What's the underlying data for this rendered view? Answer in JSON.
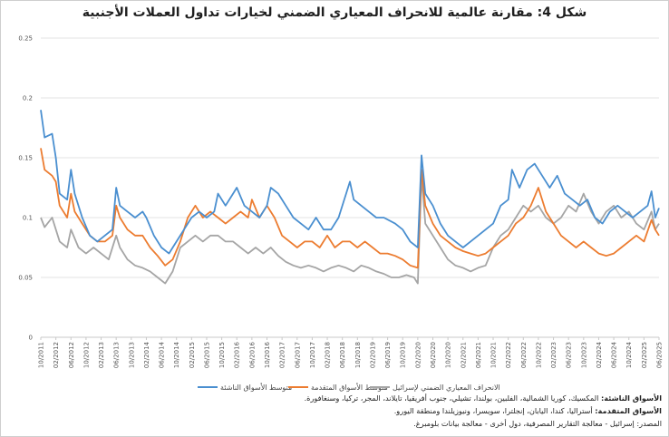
{
  "title": {
    "prefix": "شكل 4:",
    "text": "مقارنة عالمية للانحراف المعياري الضمني لخيارات تداول العملات الأجنبية"
  },
  "notes": [
    {
      "label": "الأسواق الناشئة:",
      "text": "المكسيك، كوريا الشمالية، الفلبين، بولندا، تشيلي، جنوب أفريقيا، تايلاند، المجر، تركيا، وسنغافورة."
    },
    {
      "label": "الأسواق المتقدمة:",
      "text": "أستراليا، كندا، اليابان، إنجلترا، سويسرا، ونيوزيلندا ومنطقة اليورو."
    },
    {
      "label": "",
      "text": "المصدر: إسرائيل - معالجة التقارير المصرفية، دول أخرى - معالجة بيانات بلومبرغ."
    }
  ],
  "chart_data": {
    "type": "line",
    "title": "",
    "xlabel": "",
    "ylabel": "",
    "ylim": [
      0,
      0.25
    ],
    "y_ticks": [
      "0",
      "0.05",
      "0.1",
      "0.15",
      "0.2",
      "0.25"
    ],
    "grid": true,
    "legend_position": "bottom",
    "x_range": [
      "2011-10",
      "2025-06"
    ],
    "x_tick_labels": [
      "10/2011",
      "02/2012",
      "06/2012",
      "10/2012",
      "02/2013",
      "06/2013",
      "10/2013",
      "02/2014",
      "06/2014",
      "10/2014",
      "02/2015",
      "06/2015",
      "10/2015",
      "02/2016",
      "06/2016",
      "10/2016",
      "02/2017",
      "06/2017",
      "10/2017",
      "02/2018",
      "06/2018",
      "10/2018",
      "02/2019",
      "06/2019",
      "10/2019",
      "02/2020",
      "06/2020",
      "10/2020",
      "02/2021",
      "06/2021",
      "10/2021",
      "02/2022",
      "06/2022",
      "10/2022",
      "02/2023",
      "06/2023",
      "10/2023",
      "02/2024",
      "06/2024",
      "10/2024",
      "02/2025",
      "06/2025"
    ],
    "series": [
      {
        "name": "متوسط الأسواق الناشئة",
        "color": "#4a8fd0",
        "points": [
          [
            "2011-10",
            0.19
          ],
          [
            "2011-11",
            0.167
          ],
          [
            "2012-01",
            0.17
          ],
          [
            "2012-02",
            0.15
          ],
          [
            "2012-03",
            0.12
          ],
          [
            "2012-05",
            0.115
          ],
          [
            "2012-06",
            0.14
          ],
          [
            "2012-07",
            0.12
          ],
          [
            "2012-09",
            0.1
          ],
          [
            "2012-11",
            0.085
          ],
          [
            "2013-01",
            0.08
          ],
          [
            "2013-03",
            0.085
          ],
          [
            "2013-05",
            0.09
          ],
          [
            "2013-06",
            0.125
          ],
          [
            "2013-07",
            0.11
          ],
          [
            "2013-09",
            0.105
          ],
          [
            "2013-11",
            0.1
          ],
          [
            "2014-01",
            0.105
          ],
          [
            "2014-02",
            0.1
          ],
          [
            "2014-04",
            0.085
          ],
          [
            "2014-06",
            0.075
          ],
          [
            "2014-08",
            0.07
          ],
          [
            "2014-10",
            0.08
          ],
          [
            "2014-12",
            0.09
          ],
          [
            "2015-02",
            0.1
          ],
          [
            "2015-04",
            0.105
          ],
          [
            "2015-06",
            0.1
          ],
          [
            "2015-08",
            0.105
          ],
          [
            "2015-09",
            0.12
          ],
          [
            "2015-11",
            0.11
          ],
          [
            "2016-01",
            0.12
          ],
          [
            "2016-02",
            0.125
          ],
          [
            "2016-04",
            0.11
          ],
          [
            "2016-06",
            0.105
          ],
          [
            "2016-08",
            0.1
          ],
          [
            "2016-10",
            0.11
          ],
          [
            "2016-11",
            0.125
          ],
          [
            "2017-01",
            0.12
          ],
          [
            "2017-03",
            0.11
          ],
          [
            "2017-05",
            0.1
          ],
          [
            "2017-07",
            0.095
          ],
          [
            "2017-09",
            0.09
          ],
          [
            "2017-11",
            0.1
          ],
          [
            "2018-01",
            0.09
          ],
          [
            "2018-03",
            0.09
          ],
          [
            "2018-05",
            0.1
          ],
          [
            "2018-08",
            0.13
          ],
          [
            "2018-09",
            0.115
          ],
          [
            "2018-11",
            0.11
          ],
          [
            "2019-01",
            0.105
          ],
          [
            "2019-03",
            0.1
          ],
          [
            "2019-05",
            0.1
          ],
          [
            "2019-08",
            0.095
          ],
          [
            "2019-10",
            0.09
          ],
          [
            "2019-12",
            0.08
          ],
          [
            "2020-02",
            0.075
          ],
          [
            "2020-03",
            0.152
          ],
          [
            "2020-04",
            0.12
          ],
          [
            "2020-06",
            0.11
          ],
          [
            "2020-08",
            0.095
          ],
          [
            "2020-10",
            0.085
          ],
          [
            "2020-12",
            0.08
          ],
          [
            "2021-02",
            0.075
          ],
          [
            "2021-04",
            0.08
          ],
          [
            "2021-06",
            0.085
          ],
          [
            "2021-08",
            0.09
          ],
          [
            "2021-10",
            0.095
          ],
          [
            "2021-12",
            0.11
          ],
          [
            "2022-02",
            0.115
          ],
          [
            "2022-03",
            0.14
          ],
          [
            "2022-05",
            0.125
          ],
          [
            "2022-07",
            0.14
          ],
          [
            "2022-09",
            0.145
          ],
          [
            "2022-11",
            0.135
          ],
          [
            "2023-01",
            0.125
          ],
          [
            "2023-03",
            0.135
          ],
          [
            "2023-05",
            0.12
          ],
          [
            "2023-07",
            0.115
          ],
          [
            "2023-09",
            0.11
          ],
          [
            "2023-11",
            0.115
          ],
          [
            "2024-01",
            0.1
          ],
          [
            "2024-03",
            0.095
          ],
          [
            "2024-05",
            0.105
          ],
          [
            "2024-07",
            0.11
          ],
          [
            "2024-09",
            0.105
          ],
          [
            "2024-11",
            0.1
          ],
          [
            "2025-01",
            0.105
          ],
          [
            "2025-03",
            0.11
          ],
          [
            "2025-04",
            0.122
          ],
          [
            "2025-05",
            0.1
          ],
          [
            "2025-06",
            0.108
          ]
        ]
      },
      {
        "name": "متوسط الأسواق المتقدمة",
        "color": "#ec7c30",
        "points": [
          [
            "2011-10",
            0.158
          ],
          [
            "2011-11",
            0.14
          ],
          [
            "2012-01",
            0.135
          ],
          [
            "2012-02",
            0.13
          ],
          [
            "2012-03",
            0.11
          ],
          [
            "2012-05",
            0.1
          ],
          [
            "2012-06",
            0.12
          ],
          [
            "2012-07",
            0.105
          ],
          [
            "2012-09",
            0.095
          ],
          [
            "2012-11",
            0.085
          ],
          [
            "2013-01",
            0.08
          ],
          [
            "2013-03",
            0.08
          ],
          [
            "2013-05",
            0.085
          ],
          [
            "2013-06",
            0.11
          ],
          [
            "2013-07",
            0.1
          ],
          [
            "2013-09",
            0.09
          ],
          [
            "2013-11",
            0.085
          ],
          [
            "2014-01",
            0.085
          ],
          [
            "2014-03",
            0.075
          ],
          [
            "2014-05",
            0.068
          ],
          [
            "2014-07",
            0.06
          ],
          [
            "2014-09",
            0.065
          ],
          [
            "2014-11",
            0.08
          ],
          [
            "2015-01",
            0.1
          ],
          [
            "2015-03",
            0.11
          ],
          [
            "2015-05",
            0.1
          ],
          [
            "2015-07",
            0.105
          ],
          [
            "2015-09",
            0.1
          ],
          [
            "2015-11",
            0.095
          ],
          [
            "2016-01",
            0.1
          ],
          [
            "2016-03",
            0.105
          ],
          [
            "2016-05",
            0.1
          ],
          [
            "2016-06",
            0.115
          ],
          [
            "2016-08",
            0.1
          ],
          [
            "2016-10",
            0.11
          ],
          [
            "2016-12",
            0.1
          ],
          [
            "2017-02",
            0.085
          ],
          [
            "2017-04",
            0.08
          ],
          [
            "2017-06",
            0.075
          ],
          [
            "2017-08",
            0.08
          ],
          [
            "2017-10",
            0.08
          ],
          [
            "2017-12",
            0.075
          ],
          [
            "2018-02",
            0.085
          ],
          [
            "2018-04",
            0.075
          ],
          [
            "2018-06",
            0.08
          ],
          [
            "2018-08",
            0.08
          ],
          [
            "2018-10",
            0.075
          ],
          [
            "2018-12",
            0.08
          ],
          [
            "2019-02",
            0.075
          ],
          [
            "2019-04",
            0.07
          ],
          [
            "2019-06",
            0.07
          ],
          [
            "2019-08",
            0.068
          ],
          [
            "2019-10",
            0.065
          ],
          [
            "2019-12",
            0.06
          ],
          [
            "2020-02",
            0.058
          ],
          [
            "2020-03",
            0.14
          ],
          [
            "2020-04",
            0.11
          ],
          [
            "2020-06",
            0.095
          ],
          [
            "2020-08",
            0.085
          ],
          [
            "2020-10",
            0.08
          ],
          [
            "2020-12",
            0.075
          ],
          [
            "2021-02",
            0.072
          ],
          [
            "2021-04",
            0.07
          ],
          [
            "2021-06",
            0.068
          ],
          [
            "2021-08",
            0.07
          ],
          [
            "2021-10",
            0.075
          ],
          [
            "2021-12",
            0.08
          ],
          [
            "2022-02",
            0.085
          ],
          [
            "2022-04",
            0.095
          ],
          [
            "2022-06",
            0.1
          ],
          [
            "2022-08",
            0.11
          ],
          [
            "2022-10",
            0.125
          ],
          [
            "2022-12",
            0.105
          ],
          [
            "2023-02",
            0.095
          ],
          [
            "2023-04",
            0.085
          ],
          [
            "2023-06",
            0.08
          ],
          [
            "2023-08",
            0.075
          ],
          [
            "2023-10",
            0.08
          ],
          [
            "2023-12",
            0.075
          ],
          [
            "2024-02",
            0.07
          ],
          [
            "2024-04",
            0.068
          ],
          [
            "2024-06",
            0.07
          ],
          [
            "2024-08",
            0.075
          ],
          [
            "2024-10",
            0.08
          ],
          [
            "2024-12",
            0.085
          ],
          [
            "2025-02",
            0.08
          ],
          [
            "2025-04",
            0.098
          ],
          [
            "2025-05",
            0.09
          ],
          [
            "2025-06",
            0.085
          ]
        ]
      },
      {
        "name": "الانحراف المعياري الضمني لإسرائيل",
        "color": "#a5a5a5",
        "points": [
          [
            "2011-10",
            0.1
          ],
          [
            "2011-11",
            0.092
          ],
          [
            "2012-01",
            0.1
          ],
          [
            "2012-03",
            0.08
          ],
          [
            "2012-05",
            0.075
          ],
          [
            "2012-06",
            0.09
          ],
          [
            "2012-08",
            0.075
          ],
          [
            "2012-10",
            0.07
          ],
          [
            "2012-12",
            0.075
          ],
          [
            "2013-02",
            0.07
          ],
          [
            "2013-04",
            0.065
          ],
          [
            "2013-06",
            0.085
          ],
          [
            "2013-07",
            0.075
          ],
          [
            "2013-09",
            0.065
          ],
          [
            "2013-11",
            0.06
          ],
          [
            "2014-01",
            0.058
          ],
          [
            "2014-03",
            0.055
          ],
          [
            "2014-05",
            0.05
          ],
          [
            "2014-07",
            0.045
          ],
          [
            "2014-09",
            0.055
          ],
          [
            "2014-11",
            0.075
          ],
          [
            "2015-01",
            0.08
          ],
          [
            "2015-03",
            0.085
          ],
          [
            "2015-05",
            0.08
          ],
          [
            "2015-07",
            0.085
          ],
          [
            "2015-09",
            0.085
          ],
          [
            "2015-11",
            0.08
          ],
          [
            "2016-01",
            0.08
          ],
          [
            "2016-03",
            0.075
          ],
          [
            "2016-05",
            0.07
          ],
          [
            "2016-07",
            0.075
          ],
          [
            "2016-09",
            0.07
          ],
          [
            "2016-11",
            0.075
          ],
          [
            "2017-01",
            0.068
          ],
          [
            "2017-03",
            0.063
          ],
          [
            "2017-05",
            0.06
          ],
          [
            "2017-07",
            0.058
          ],
          [
            "2017-09",
            0.06
          ],
          [
            "2017-11",
            0.058
          ],
          [
            "2018-01",
            0.055
          ],
          [
            "2018-03",
            0.058
          ],
          [
            "2018-05",
            0.06
          ],
          [
            "2018-07",
            0.058
          ],
          [
            "2018-09",
            0.055
          ],
          [
            "2018-11",
            0.06
          ],
          [
            "2019-01",
            0.058
          ],
          [
            "2019-03",
            0.055
          ],
          [
            "2019-05",
            0.053
          ],
          [
            "2019-07",
            0.05
          ],
          [
            "2019-09",
            0.05
          ],
          [
            "2019-11",
            0.052
          ],
          [
            "2020-01",
            0.05
          ],
          [
            "2020-02",
            0.045
          ],
          [
            "2020-03",
            0.135
          ],
          [
            "2020-04",
            0.095
          ],
          [
            "2020-06",
            0.085
          ],
          [
            "2020-08",
            0.075
          ],
          [
            "2020-10",
            0.065
          ],
          [
            "2020-12",
            0.06
          ],
          [
            "2021-02",
            0.058
          ],
          [
            "2021-04",
            0.055
          ],
          [
            "2021-06",
            0.058
          ],
          [
            "2021-08",
            0.06
          ],
          [
            "2021-10",
            0.075
          ],
          [
            "2021-12",
            0.085
          ],
          [
            "2022-02",
            0.09
          ],
          [
            "2022-04",
            0.1
          ],
          [
            "2022-06",
            0.11
          ],
          [
            "2022-08",
            0.105
          ],
          [
            "2022-10",
            0.11
          ],
          [
            "2022-12",
            0.1
          ],
          [
            "2023-02",
            0.095
          ],
          [
            "2023-04",
            0.1
          ],
          [
            "2023-06",
            0.11
          ],
          [
            "2023-08",
            0.105
          ],
          [
            "2023-10",
            0.12
          ],
          [
            "2023-12",
            0.105
          ],
          [
            "2024-02",
            0.095
          ],
          [
            "2024-04",
            0.105
          ],
          [
            "2024-06",
            0.11
          ],
          [
            "2024-08",
            0.1
          ],
          [
            "2024-10",
            0.105
          ],
          [
            "2024-12",
            0.095
          ],
          [
            "2025-02",
            0.09
          ],
          [
            "2025-04",
            0.105
          ],
          [
            "2025-05",
            0.09
          ],
          [
            "2025-06",
            0.095
          ]
        ]
      }
    ]
  }
}
